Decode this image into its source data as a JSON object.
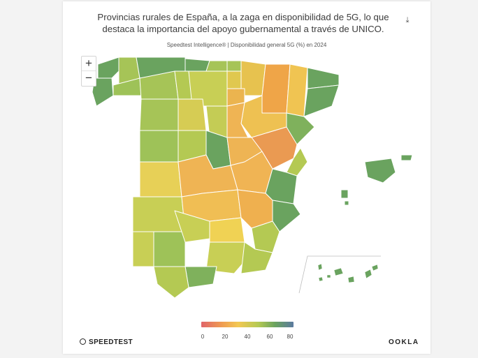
{
  "title": "Provincias rurales de España, a la zaga en disponibilidad de 5G, lo que destaca la importancia del apoyo gubernamental a través de UNICO.",
  "subtitle": "Speedtest Intelligence® | Disponibilidad general 5G (%) en 2024",
  "controls": {
    "zoom_in": "+",
    "zoom_out": "−",
    "download_icon": "download-icon"
  },
  "legend": {
    "ticks": [
      "0",
      "20",
      "40",
      "60",
      "80"
    ]
  },
  "brands": {
    "left": "SPEEDTEST",
    "right": "OOKLA"
  },
  "colors": {
    "scale_low": "#e0656a",
    "scale_20": "#ef9b52",
    "scale_40": "#f3c852",
    "scale_60": "#b4c953",
    "scale_70": "#6aa35f",
    "scale_high": "#5b7aa0",
    "border": "#ffffff"
  }
}
